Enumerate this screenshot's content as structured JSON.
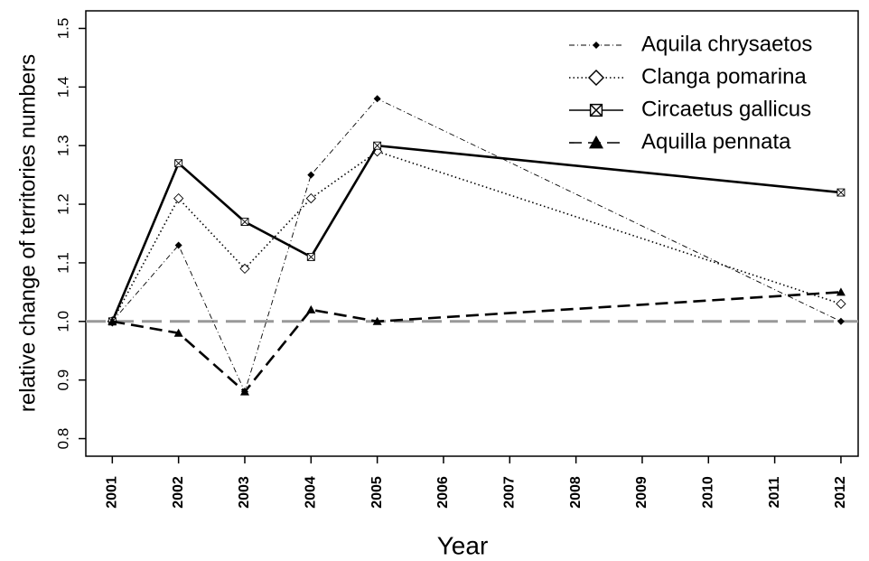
{
  "chart_data": {
    "type": "line",
    "x_label": "Year",
    "y_label": "relative change of territories numbers",
    "x": [
      2001,
      2002,
      2003,
      2004,
      2005,
      2012
    ],
    "xlim": [
      2000.6,
      2012.26
    ],
    "ylim": [
      0.77,
      1.53
    ],
    "xticks": [
      2001,
      2002,
      2003,
      2004,
      2005,
      2006,
      2007,
      2008,
      2009,
      2010,
      2011,
      2012
    ],
    "yticks": [
      0.8,
      0.9,
      {
        "value": 1,
        "label": "1.0"
      },
      1.1,
      1.2,
      1.3,
      1.4,
      1.5
    ],
    "reference_line": 1,
    "legend": "top-right",
    "series": [
      {
        "name": "Aquila chrysaetos",
        "color": "#000000",
        "style": "dashdot",
        "marker": "filled-diamond",
        "values": [
          1.0,
          1.13,
          0.88,
          1.25,
          1.38,
          1.0
        ]
      },
      {
        "name": "Clanga pomarina",
        "color": "#000000",
        "style": "dotted",
        "marker": "open-diamond",
        "values": [
          1.0,
          1.21,
          1.09,
          1.21,
          1.29,
          1.03
        ]
      },
      {
        "name": "Circaetus gallicus",
        "color": "#000000",
        "style": "solid",
        "marker": "boxed-cross",
        "values": [
          1.0,
          1.27,
          1.17,
          1.11,
          1.3,
          1.22
        ]
      },
      {
        "name": "Aquilla pennata",
        "color": "#000000",
        "style": "dashed",
        "marker": "filled-triangle",
        "values": [
          1.0,
          0.98,
          0.88,
          1.02,
          1.0,
          1.05
        ]
      }
    ]
  }
}
